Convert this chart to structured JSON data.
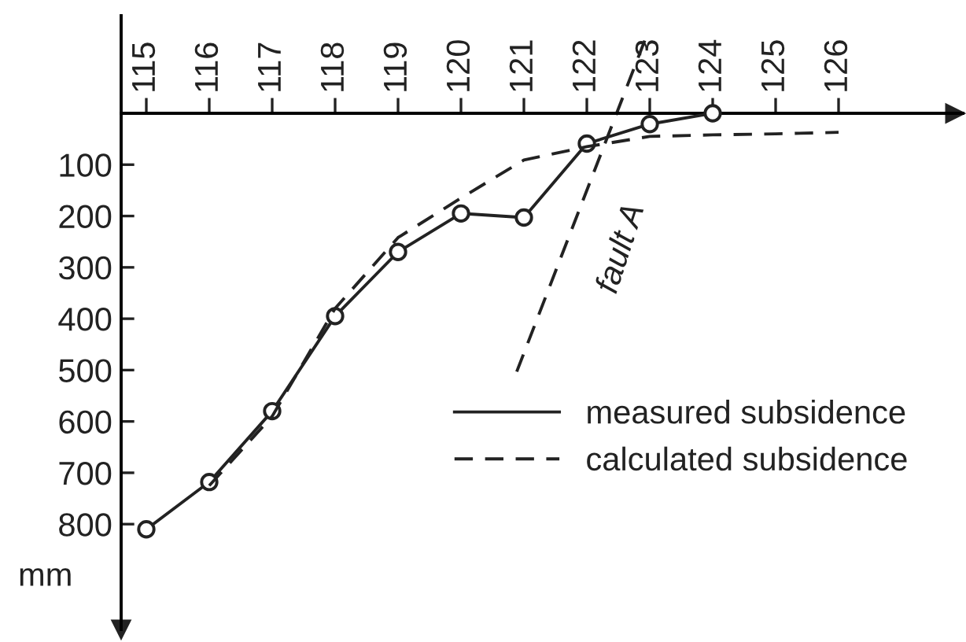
{
  "chart_data": {
    "type": "line",
    "ylabel": "mm",
    "categories": [
      "115",
      "116",
      "117",
      "118",
      "119",
      "120",
      "121",
      "122",
      "123",
      "124",
      "125",
      "126"
    ],
    "series": [
      {
        "name": "measured subsidence",
        "color": "#222222",
        "line_style": "solid",
        "marker": "circle",
        "values": [
          810,
          718,
          580,
          395,
          270,
          195,
          203,
          59,
          21,
          0,
          null,
          null
        ]
      },
      {
        "name": "calculated subsidence",
        "color": "#222222",
        "line_style": "dashed",
        "marker": "none",
        "values": [
          null,
          725,
          590,
          380,
          242,
          165,
          91,
          65,
          45,
          42,
          40,
          37
        ]
      }
    ],
    "annotations": [
      "fault A"
    ],
    "ylim": [
      1005,
      -190
    ],
    "yticks": [
      100,
      200,
      300,
      400,
      500,
      600,
      700,
      800
    ],
    "grid": false,
    "legend": "bottom right"
  }
}
